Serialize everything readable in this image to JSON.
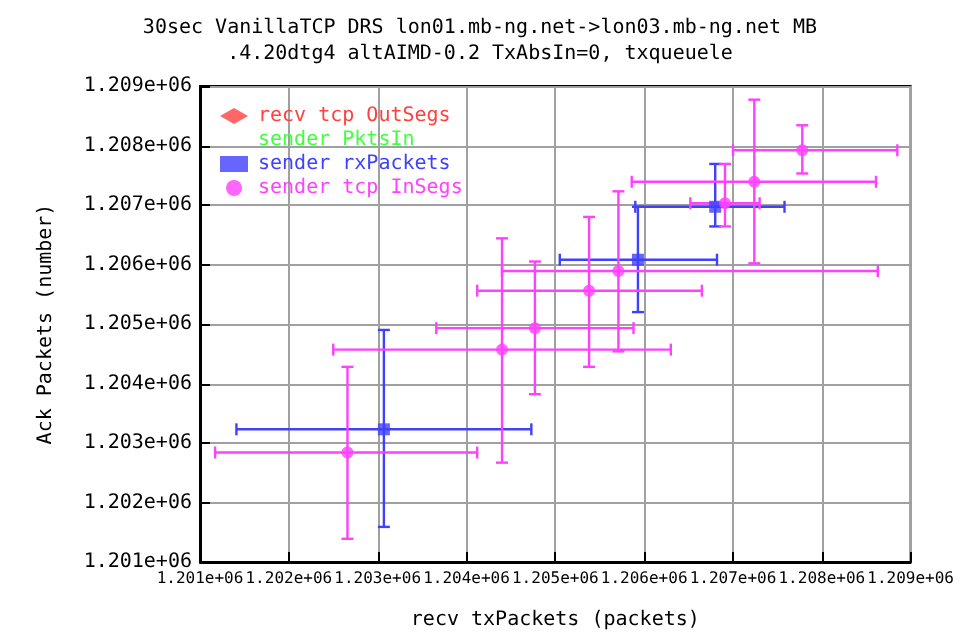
{
  "chart_data": {
    "type": "scatter",
    "title": "30sec VanillaTCP DRS lon01.mb-ng.net->lon03.mb-ng.net MB",
    "subtitle": ".4.20dtg4 altAIMD-0.2 TxAbsIn=0, txqueuele",
    "xlabel": "recv txPackets (packets)",
    "ylabel": "Ack Packets (number)",
    "xlim": [
      1201000,
      1209000
    ],
    "xticks": [
      {
        "value": 1201000,
        "label": "1.201e+06"
      },
      {
        "value": 1202000,
        "label": "1.202e+06"
      },
      {
        "value": 1203000,
        "label": "1.203e+06"
      },
      {
        "value": 1204000,
        "label": "1.204e+06"
      },
      {
        "value": 1205000,
        "label": "1.205e+06"
      },
      {
        "value": 1206000,
        "label": "1.206e+06"
      },
      {
        "value": 1207000,
        "label": "1.207e+06"
      },
      {
        "value": 1208000,
        "label": "1.208e+06"
      },
      {
        "value": 1209000,
        "label": "1.209e+06"
      }
    ],
    "ylim": [
      1201000,
      1209000
    ],
    "yticks": [
      {
        "value": 1201000,
        "label": "1.201e+06"
      },
      {
        "value": 1202000,
        "label": "1.202e+06"
      },
      {
        "value": 1203000,
        "label": "1.203e+06"
      },
      {
        "value": 1204000,
        "label": "1.204e+06"
      },
      {
        "value": 1205000,
        "label": "1.205e+06"
      },
      {
        "value": 1206000,
        "label": "1.206e+06"
      },
      {
        "value": 1207000,
        "label": "1.207e+06"
      },
      {
        "value": 1208000,
        "label": "1.208e+06"
      },
      {
        "value": 1209000,
        "label": "1.209e+06"
      }
    ],
    "grid": true,
    "legend": "top left",
    "series": [
      {
        "name": "recv tcp OutSegs",
        "color": "#ff4040",
        "marker": "diamond",
        "x": [
          null
        ],
        "values": [
          null
        ]
      },
      {
        "name": "sender PktsIn",
        "color": "#40ff40",
        "marker": "cross",
        "x": [
          null
        ],
        "values": [
          null
        ]
      },
      {
        "name": "sender rxPackets",
        "color": "#4040ff",
        "marker": "square",
        "x": [
          1203070,
          1205930,
          1206800
        ],
        "values": [
          1203230,
          1206080,
          1206970
        ],
        "xerrors": [
          [
            1201410,
            1204730
          ],
          [
            1205050,
            1206820
          ],
          [
            1205900,
            1207580
          ]
        ],
        "errors": [
          [
            1201590,
            1204900
          ],
          [
            1205200,
            1206970
          ],
          [
            1206640,
            1207690
          ]
        ]
      },
      {
        "name": "sender tcp InSegs",
        "color": "#ff40ff",
        "marker": "circle",
        "x": [
          1202660,
          1204400,
          1204770,
          1205380,
          1205710,
          1206910,
          1207240,
          1207780
        ],
        "values": [
          1202840,
          1204570,
          1204930,
          1205560,
          1205890,
          1207030,
          1207390,
          1207920
        ],
        "xerrors": [
          [
            1201170,
            1204120
          ],
          [
            1202500,
            1206300
          ],
          [
            1203660,
            1205880
          ],
          [
            1204120,
            1206650
          ],
          [
            1204400,
            1208630
          ],
          [
            1206520,
            1207300
          ],
          [
            1205860,
            1208610
          ],
          [
            1207000,
            1208850
          ]
        ],
        "errors": [
          [
            1201390,
            1204280
          ],
          [
            1202670,
            1206440
          ],
          [
            1203820,
            1206050
          ],
          [
            1204280,
            1206800
          ],
          [
            1204540,
            1207230
          ],
          [
            1206640,
            1207690
          ],
          [
            1206020,
            1208770
          ],
          [
            1207530,
            1208340
          ]
        ]
      }
    ]
  }
}
